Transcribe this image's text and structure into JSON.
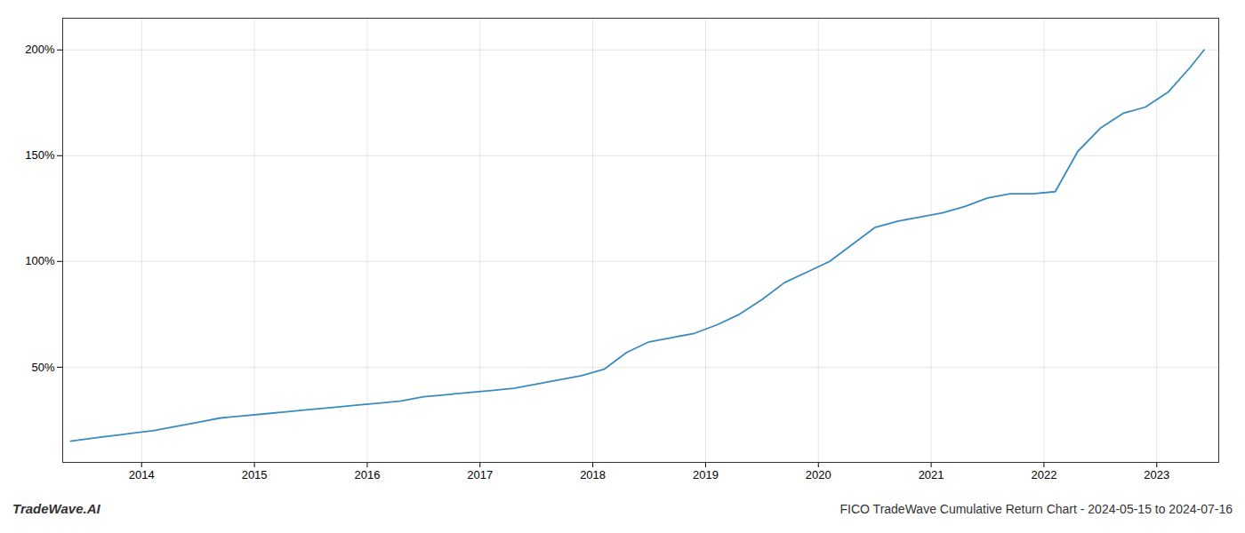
{
  "chart_data": {
    "type": "line",
    "title": "FICO TradeWave Cumulative Return Chart - 2024-05-15 to 2024-07-16",
    "annotations": [
      {
        "text": "TradeWave.AI"
      }
    ],
    "x": [
      2013.37,
      2013.5,
      2013.65,
      2013.8,
      2013.95,
      2014.1,
      2014.3,
      2014.5,
      2014.7,
      2014.9,
      2015.1,
      2015.3,
      2015.5,
      2015.7,
      2015.9,
      2016.1,
      2016.3,
      2016.5,
      2016.7,
      2016.9,
      2017.1,
      2017.3,
      2017.5,
      2017.7,
      2017.9,
      2018.1,
      2018.3,
      2018.5,
      2018.7,
      2018.9,
      2019.1,
      2019.3,
      2019.5,
      2019.7,
      2019.9,
      2020.1,
      2020.3,
      2020.5,
      2020.7,
      2020.9,
      2021.1,
      2021.3,
      2021.5,
      2021.7,
      2021.9,
      2022.1,
      2022.3,
      2022.5,
      2022.7,
      2022.9,
      2023.1,
      2023.3,
      2023.42
    ],
    "values": [
      15,
      16,
      17,
      18,
      19,
      20,
      22,
      24,
      26,
      27,
      28,
      29,
      30,
      31,
      32,
      33,
      34,
      36,
      37,
      38,
      39,
      40,
      42,
      44,
      46,
      49,
      57,
      62,
      64,
      66,
      70,
      75,
      82,
      90,
      95,
      100,
      108,
      116,
      119,
      121,
      123,
      126,
      130,
      132,
      132,
      133,
      152,
      163,
      170,
      173,
      180,
      192,
      200
    ],
    "color": "#3a8bbf",
    "xlim": [
      2013.3,
      2023.55
    ],
    "xticks": [
      2014,
      2015,
      2016,
      2017,
      2018,
      2019,
      2020,
      2021,
      2022,
      2023
    ],
    "ylim": [
      5,
      215
    ],
    "yticks": [
      {
        "value": 50,
        "label": "50%"
      },
      {
        "value": 100,
        "label": "100%"
      },
      {
        "value": 150,
        "label": "150%"
      },
      {
        "value": 200,
        "label": "200%"
      }
    ],
    "grid": true
  }
}
